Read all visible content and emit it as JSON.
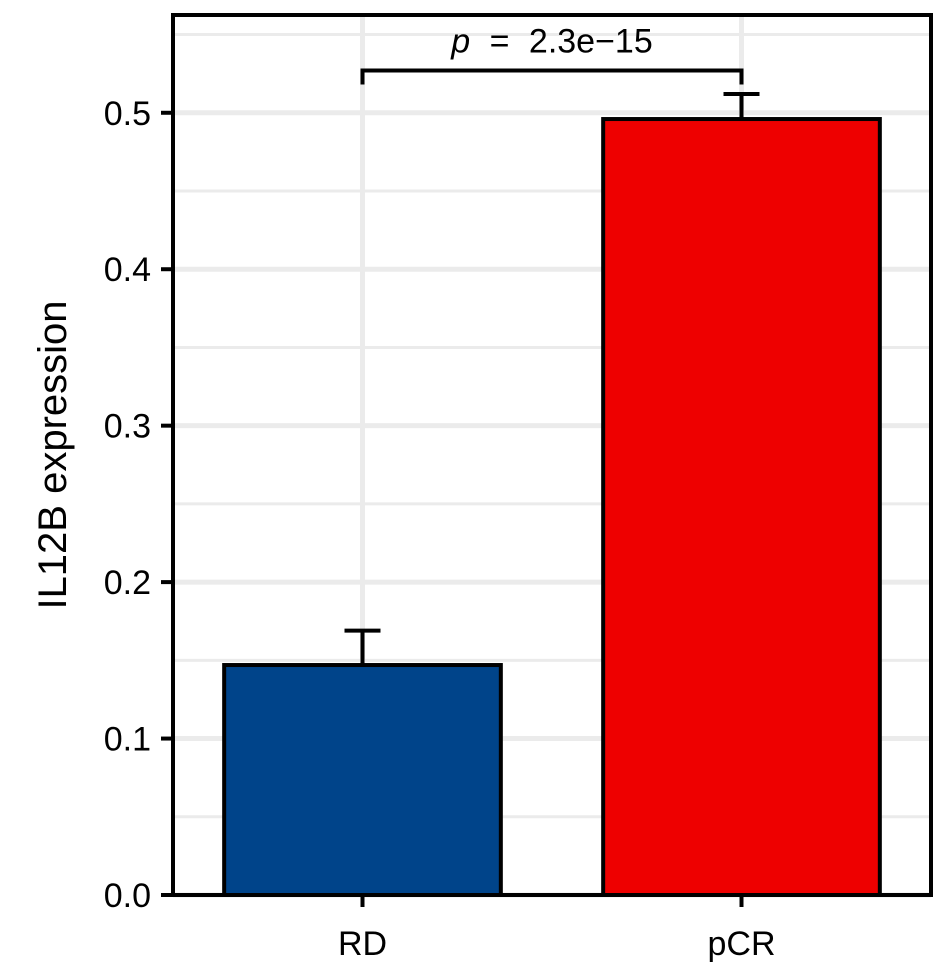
{
  "chart_data": {
    "type": "bar",
    "categories": [
      "RD",
      "pCR"
    ],
    "values": [
      0.147,
      0.496
    ],
    "error_upper": [
      0.169,
      0.512
    ],
    "colors": [
      "#00448a",
      "#ee0000"
    ],
    "xlabel": "",
    "ylabel": "IL12B expression",
    "ylim": [
      0,
      0.5625
    ],
    "yticks": [
      0.0,
      0.1,
      0.2,
      0.3,
      0.4,
      0.5
    ],
    "ytick_labels": [
      "0.0",
      "0.1",
      "0.2",
      "0.3",
      "0.4",
      "0.5"
    ],
    "grid": true,
    "annotation": {
      "p_symbol": "p",
      "equals": "=",
      "value": "2.3e−15",
      "bracket_y": 0.527,
      "between": [
        "RD",
        "pCR"
      ]
    }
  }
}
